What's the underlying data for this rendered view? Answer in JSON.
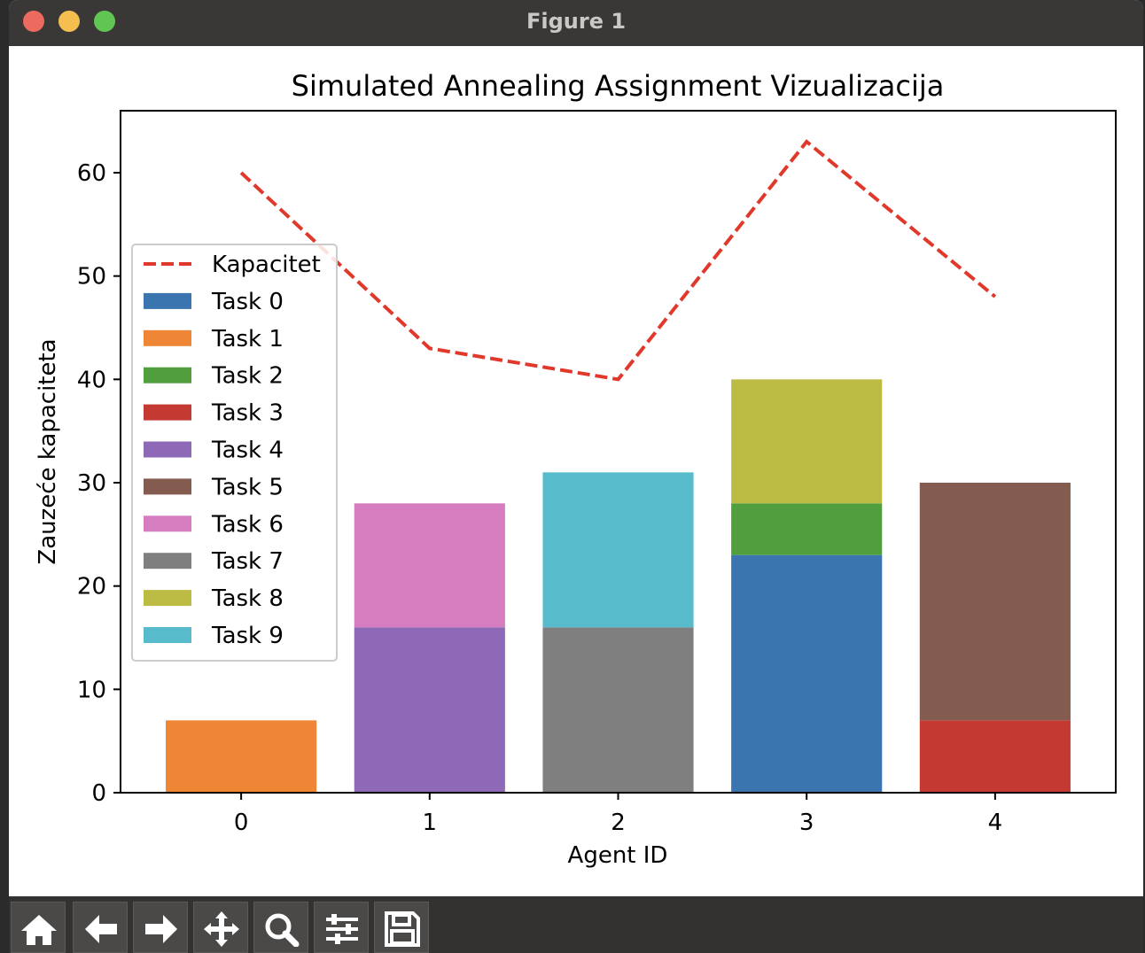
{
  "window": {
    "title": "Figure 1"
  },
  "chart_data": {
    "type": "bar",
    "stacked": true,
    "title": "Simulated Annealing Assignment Vizualizacija",
    "xlabel": "Agent ID",
    "ylabel": "Zauzeće kapaciteta",
    "categories": [
      "0",
      "1",
      "2",
      "3",
      "4"
    ],
    "x_ticks": [
      "0",
      "1",
      "2",
      "3",
      "4"
    ],
    "ylim": [
      0,
      66
    ],
    "y_ticks": [
      "0",
      "10",
      "20",
      "30",
      "40",
      "50",
      "60"
    ],
    "grid": false,
    "legend_position": "center-left",
    "line": {
      "name": "Kapacitet",
      "color": "#e0392b",
      "style": "dashed",
      "values": [
        60,
        43,
        40,
        63,
        48
      ]
    },
    "series": [
      {
        "name": "Task 0",
        "color": "#3a75b0",
        "agent": 3,
        "value": 23,
        "bottom": 0
      },
      {
        "name": "Task 1",
        "color": "#ef8636",
        "agent": 0,
        "value": 7,
        "bottom": 0
      },
      {
        "name": "Task 2",
        "color": "#519e3e",
        "agent": 3,
        "value": 5,
        "bottom": 23
      },
      {
        "name": "Task 3",
        "color": "#c43932",
        "agent": 4,
        "value": 7,
        "bottom": 0
      },
      {
        "name": "Task 4",
        "color": "#8d69b8",
        "agent": 1,
        "value": 16,
        "bottom": 0
      },
      {
        "name": "Task 5",
        "color": "#845b4f",
        "agent": 4,
        "value": 23,
        "bottom": 7
      },
      {
        "name": "Task 6",
        "color": "#d57dbf",
        "agent": 1,
        "value": 12,
        "bottom": 16
      },
      {
        "name": "Task 7",
        "color": "#7f7f7f",
        "agent": 2,
        "value": 16,
        "bottom": 0
      },
      {
        "name": "Task 8",
        "color": "#bcbc45",
        "agent": 3,
        "value": 12,
        "bottom": 28
      },
      {
        "name": "Task 9",
        "color": "#58bbcc",
        "agent": 2,
        "value": 15,
        "bottom": 16
      }
    ]
  },
  "toolbar": {
    "buttons": [
      {
        "icon": "home-icon"
      },
      {
        "icon": "back-arrow-icon"
      },
      {
        "icon": "forward-arrow-icon"
      },
      {
        "icon": "pan-icon"
      },
      {
        "icon": "zoom-icon"
      },
      {
        "icon": "configure-subplots-icon"
      },
      {
        "icon": "save-icon"
      }
    ]
  }
}
